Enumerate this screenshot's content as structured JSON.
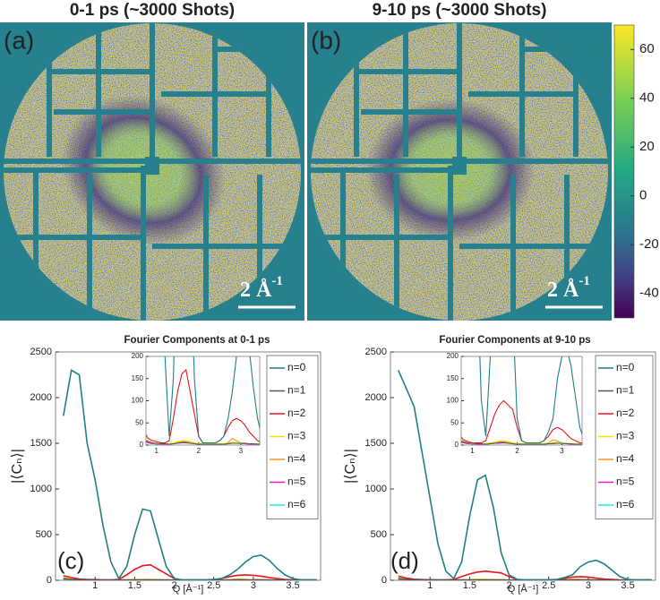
{
  "panels": [
    {
      "title": "0-1 ps (~3000 Shots)",
      "label": "(a)",
      "scale_bar": {
        "text": "2 Å",
        "exponent": "-1"
      }
    },
    {
      "title": "9-10 ps (~3000 Shots)",
      "label": "(b)",
      "scale_bar": {
        "text": "2 Å",
        "exponent": "-1"
      }
    }
  ],
  "colorbar": {
    "lim": [
      -50,
      70
    ],
    "ticks": [
      60,
      40,
      20,
      0,
      -20,
      -40
    ]
  },
  "chart_data": [
    {
      "type": "line",
      "title": "Fourier Components at 0-1 ps",
      "panel_label": "(c)",
      "xlabel": "Q [Å⁻¹]",
      "ylabel": "|⟨Cₙ⟩|",
      "xlim": [
        0.5,
        3.85
      ],
      "ylim": [
        0,
        2500
      ],
      "xticks": [
        1,
        1.5,
        2,
        2.5,
        3,
        3.5
      ],
      "yticks": [
        0,
        500,
        1000,
        1500,
        2000,
        2500
      ],
      "legend": "upper right",
      "inset": {
        "xlim": [
          0.75,
          3.45
        ],
        "ylim": [
          0,
          200
        ],
        "xticks": [
          1,
          2,
          3
        ],
        "yticks": [
          0,
          50,
          100,
          150,
          200
        ]
      },
      "x": [
        0.6,
        0.7,
        0.8,
        0.9,
        1.0,
        1.1,
        1.2,
        1.3,
        1.4,
        1.5,
        1.6,
        1.7,
        1.8,
        1.9,
        2.0,
        2.1,
        2.2,
        2.3,
        2.4,
        2.5,
        2.6,
        2.7,
        2.8,
        2.9,
        3.0,
        3.1,
        3.2,
        3.3,
        3.4,
        3.5,
        3.6,
        3.7,
        3.8
      ],
      "series": [
        {
          "name": "n=0",
          "color": "#1f7f86",
          "values": [
            1800,
            2300,
            2250,
            1500,
            1100,
            600,
            200,
            20,
            150,
            500,
            780,
            760,
            450,
            150,
            20,
            5,
            5,
            5,
            5,
            10,
            20,
            60,
            120,
            200,
            260,
            275,
            220,
            130,
            60,
            20,
            5,
            5,
            5
          ]
        },
        {
          "name": "n=1",
          "color": "#555555",
          "values": [
            20,
            10,
            8,
            5,
            4,
            3,
            3,
            2,
            3,
            4,
            5,
            5,
            4,
            3,
            2,
            2,
            2,
            2,
            2,
            2,
            2,
            3,
            4,
            4,
            4,
            4,
            3,
            3,
            2,
            2,
            2,
            2,
            2
          ]
        },
        {
          "name": "n=2",
          "color": "#e8141b",
          "values": [
            50,
            30,
            15,
            10,
            8,
            5,
            5,
            10,
            60,
            120,
            160,
            170,
            120,
            70,
            20,
            5,
            5,
            5,
            5,
            10,
            20,
            40,
            55,
            60,
            55,
            45,
            30,
            20,
            10,
            5,
            5,
            5,
            5
          ]
        },
        {
          "name": "n=3",
          "color": "#e8e800",
          "values": [
            30,
            15,
            10,
            5,
            3,
            3,
            3,
            3,
            5,
            8,
            10,
            10,
            8,
            5,
            3,
            3,
            3,
            3,
            3,
            3,
            3,
            5,
            6,
            6,
            5,
            4,
            3,
            3,
            3,
            3,
            3,
            3,
            3
          ]
        },
        {
          "name": "n=4",
          "color": "#f59a20",
          "values": [
            25,
            15,
            8,
            5,
            3,
            3,
            3,
            3,
            4,
            6,
            8,
            8,
            6,
            4,
            3,
            3,
            3,
            3,
            3,
            3,
            3,
            6,
            15,
            10,
            5,
            4,
            3,
            3,
            3,
            3,
            3,
            3,
            3
          ]
        },
        {
          "name": "n=5",
          "color": "#f012e0",
          "values": [
            15,
            10,
            5,
            3,
            3,
            2,
            2,
            2,
            3,
            5,
            6,
            6,
            5,
            3,
            2,
            2,
            2,
            2,
            2,
            2,
            2,
            3,
            5,
            5,
            4,
            3,
            2,
            2,
            2,
            2,
            2,
            2,
            2
          ]
        },
        {
          "name": "n=6",
          "color": "#18e8e8",
          "values": [
            10,
            8,
            5,
            3,
            2,
            2,
            2,
            2,
            3,
            4,
            5,
            5,
            4,
            3,
            2,
            2,
            2,
            2,
            2,
            2,
            2,
            3,
            4,
            4,
            3,
            3,
            2,
            2,
            2,
            2,
            2,
            2,
            2
          ]
        }
      ]
    },
    {
      "type": "line",
      "title": "Fourier Components at 9-10 ps",
      "panel_label": "(d)",
      "xlabel": "Q [Å⁻¹]",
      "ylabel": "|⟨Cₙ⟩|",
      "xlim": [
        0.5,
        3.85
      ],
      "ylim": [
        0,
        2500
      ],
      "xticks": [
        1,
        1.5,
        2,
        2.5,
        3,
        3.5
      ],
      "yticks": [
        0,
        500,
        1000,
        1500,
        2000,
        2500
      ],
      "legend": "upper right",
      "inset": {
        "xlim": [
          0.75,
          3.45
        ],
        "ylim": [
          0,
          200
        ],
        "xticks": [
          1,
          2,
          3
        ],
        "yticks": [
          0,
          50,
          100,
          150,
          200
        ]
      },
      "x": [
        0.6,
        0.7,
        0.8,
        0.9,
        1.0,
        1.1,
        1.2,
        1.3,
        1.4,
        1.5,
        1.6,
        1.7,
        1.8,
        1.9,
        2.0,
        2.1,
        2.2,
        2.3,
        2.4,
        2.5,
        2.6,
        2.7,
        2.8,
        2.9,
        3.0,
        3.1,
        3.2,
        3.3,
        3.4,
        3.5,
        3.6,
        3.7,
        3.8
      ],
      "series": [
        {
          "name": "n=0",
          "color": "#1f7f86",
          "values": [
            2300,
            2100,
            1900,
            1400,
            900,
            400,
            100,
            20,
            200,
            700,
            1100,
            1150,
            800,
            300,
            60,
            10,
            5,
            5,
            5,
            5,
            10,
            30,
            60,
            150,
            200,
            220,
            180,
            110,
            40,
            10,
            5,
            5,
            5
          ]
        },
        {
          "name": "n=1",
          "color": "#555555",
          "values": [
            18,
            10,
            7,
            5,
            4,
            3,
            3,
            2,
            3,
            4,
            4,
            5,
            4,
            3,
            2,
            2,
            2,
            2,
            2,
            2,
            2,
            3,
            3,
            4,
            4,
            3,
            3,
            2,
            2,
            2,
            2,
            2,
            2
          ]
        },
        {
          "name": "n=2",
          "color": "#e8141b",
          "values": [
            45,
            25,
            12,
            8,
            5,
            5,
            5,
            10,
            40,
            70,
            90,
            100,
            90,
            80,
            40,
            10,
            5,
            5,
            5,
            5,
            10,
            20,
            35,
            40,
            35,
            25,
            15,
            10,
            5,
            5,
            5,
            5,
            5
          ]
        },
        {
          "name": "n=3",
          "color": "#e8e800",
          "values": [
            28,
            15,
            9,
            5,
            3,
            3,
            3,
            3,
            5,
            7,
            9,
            10,
            8,
            5,
            3,
            3,
            3,
            3,
            3,
            3,
            3,
            4,
            6,
            6,
            5,
            4,
            3,
            3,
            3,
            3,
            3,
            3,
            3
          ]
        },
        {
          "name": "n=4",
          "color": "#f59a20",
          "values": [
            30,
            15,
            8,
            5,
            3,
            3,
            3,
            3,
            4,
            6,
            8,
            8,
            6,
            4,
            3,
            3,
            3,
            3,
            3,
            3,
            3,
            5,
            12,
            9,
            5,
            4,
            3,
            3,
            3,
            3,
            3,
            3,
            3
          ]
        },
        {
          "name": "n=5",
          "color": "#f012e0",
          "values": [
            15,
            9,
            5,
            3,
            3,
            2,
            2,
            2,
            3,
            4,
            6,
            6,
            5,
            3,
            2,
            2,
            2,
            2,
            2,
            2,
            2,
            3,
            4,
            5,
            4,
            3,
            2,
            2,
            2,
            2,
            2,
            2,
            2
          ]
        },
        {
          "name": "n=6",
          "color": "#18e8e8",
          "values": [
            12,
            8,
            5,
            3,
            2,
            2,
            2,
            2,
            3,
            4,
            5,
            5,
            4,
            3,
            2,
            2,
            2,
            2,
            2,
            2,
            2,
            3,
            4,
            4,
            3,
            3,
            2,
            2,
            2,
            2,
            2,
            2,
            2
          ]
        }
      ]
    }
  ]
}
